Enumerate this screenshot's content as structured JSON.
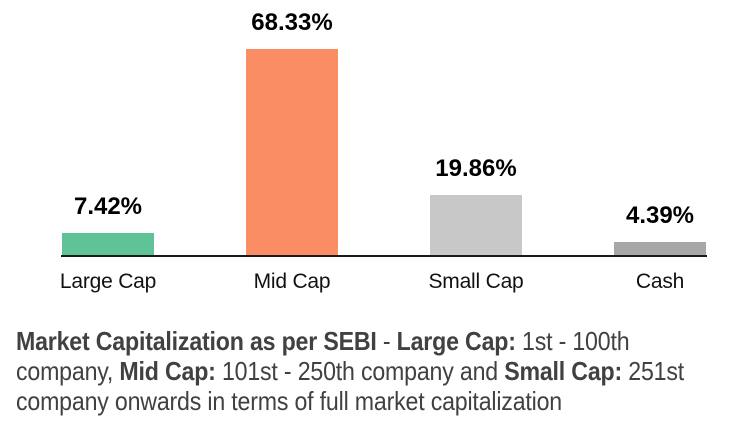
{
  "chart_data": {
    "type": "bar",
    "categories": [
      "Large Cap",
      "Mid Cap",
      "Small Cap",
      "Cash"
    ],
    "values": [
      7.42,
      68.33,
      19.86,
      4.39
    ],
    "value_labels": [
      "7.42%",
      "68.33%",
      "19.86%",
      "4.39%"
    ],
    "bar_colors": [
      "#5ec497",
      "#fa8d63",
      "#c8c8c8",
      "#a7a7a7"
    ],
    "bar_names": [
      "bar-large-cap",
      "bar-mid-cap",
      "bar-small-cap",
      "bar-cash"
    ],
    "title": "",
    "xlabel": "",
    "ylabel": "",
    "ylim": [
      0,
      75
    ],
    "grid": false,
    "legend": false,
    "axis_line_color": "#1a1a1a",
    "value_label_color": "#000000",
    "category_label_color": "#111111"
  },
  "footnote": {
    "full_text": "Market Capitalization as per SEBI - Large Cap: 1st - 100th company, Mid Cap: 101st - 250th company and Small Cap: 251st company onwards in terms of full market capitalization",
    "text_color": "#414042",
    "lines": [
      [
        {
          "text": "Market Capitalization as per SEBI",
          "bold": true
        },
        {
          "text": " - ",
          "bold": false
        },
        {
          "text": "Large Cap:",
          "bold": true
        },
        {
          "text": " 1st - 100th",
          "bold": false
        }
      ],
      [
        {
          "text": "company, ",
          "bold": false
        },
        {
          "text": "Mid Cap:",
          "bold": true
        },
        {
          "text": " 101st - 250th company and ",
          "bold": false
        },
        {
          "text": "Small Cap:",
          "bold": true
        },
        {
          "text": " 251st",
          "bold": false
        }
      ],
      [
        {
          "text": "company onwards in terms of full market capitalization",
          "bold": false
        }
      ]
    ]
  }
}
